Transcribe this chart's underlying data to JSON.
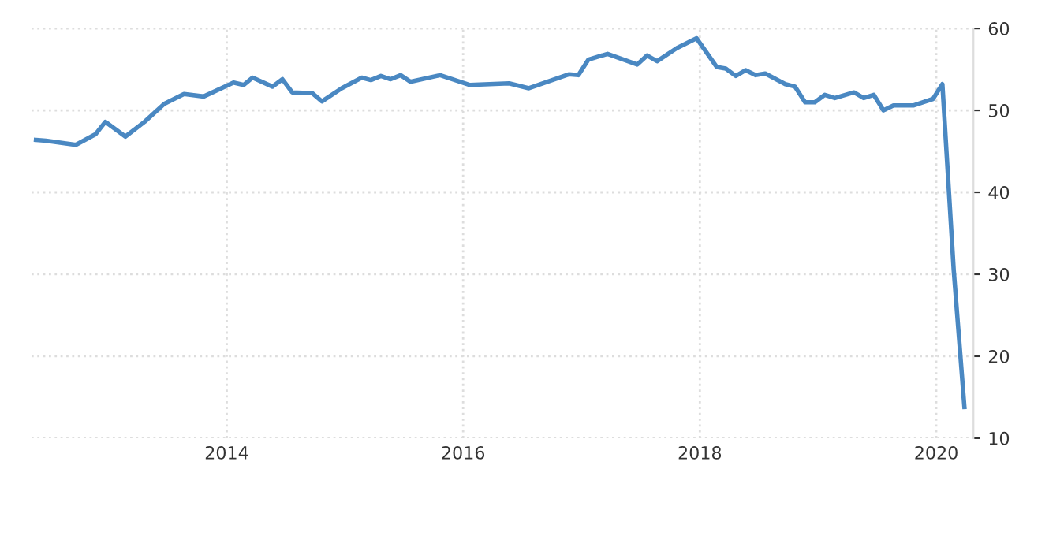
{
  "chart_data": {
    "type": "line",
    "x": [
      "2012-05-22",
      "2012-06-22",
      "2012-09-22",
      "2012-11-22",
      "2012-12-22",
      "2013-02-22",
      "2013-04-22",
      "2013-06-22",
      "2013-08-22",
      "2013-10-22",
      "2014-01-22",
      "2014-02-22",
      "2014-03-22",
      "2014-05-22",
      "2014-06-22",
      "2014-07-22",
      "2014-09-22",
      "2014-10-22",
      "2014-12-22",
      "2015-02-22",
      "2015-03-22",
      "2015-04-22",
      "2015-05-22",
      "2015-06-22",
      "2015-07-22",
      "2015-10-22",
      "2016-01-22",
      "2016-05-22",
      "2016-07-22",
      "2016-11-22",
      "2016-12-22",
      "2017-01-22",
      "2017-03-22",
      "2017-06-22",
      "2017-07-22",
      "2017-08-22",
      "2017-10-22",
      "2017-12-22",
      "2018-02-22",
      "2018-03-22",
      "2018-04-22",
      "2018-05-22",
      "2018-06-22",
      "2018-07-22",
      "2018-09-22",
      "2018-10-22",
      "2018-11-22",
      "2018-12-22",
      "2019-01-22",
      "2019-02-22",
      "2019-04-22",
      "2019-05-22",
      "2019-06-22",
      "2019-07-22",
      "2019-08-22",
      "2019-10-22",
      "2019-12-22",
      "2020-01-20",
      "2020-02-24",
      "2020-03-28"
    ],
    "series": [
      {
        "color": "#4a88c2",
        "values": [
          46.4,
          46.3,
          45.8,
          47.1,
          48.6,
          46.8,
          48.6,
          50.8,
          52.0,
          51.7,
          53.4,
          53.1,
          54.0,
          52.9,
          53.8,
          52.2,
          52.1,
          51.1,
          52.7,
          54.0,
          53.7,
          54.2,
          53.8,
          54.3,
          53.5,
          54.3,
          53.1,
          53.3,
          52.7,
          54.4,
          54.3,
          56.2,
          56.9,
          55.6,
          56.7,
          56.0,
          57.6,
          58.8,
          55.3,
          55.1,
          54.2,
          54.9,
          54.3,
          54.5,
          53.2,
          52.9,
          51.0,
          51.0,
          51.9,
          51.5,
          52.2,
          51.5,
          51.9,
          50.0,
          50.6,
          50.6,
          51.4,
          53.2,
          30.5,
          13.8
        ]
      }
    ],
    "xlim": [
      "2012-05-08",
      "2020-04-25"
    ],
    "xticks": [
      {
        "value": "2014-01-01",
        "label": "2014"
      },
      {
        "value": "2016-01-01",
        "label": "2016"
      },
      {
        "value": "2018-01-01",
        "label": "2018"
      },
      {
        "value": "2020-01-01",
        "label": "2020"
      }
    ],
    "ylim": [
      10,
      60
    ],
    "yticks": [
      10,
      20,
      30,
      40,
      50,
      60
    ],
    "grid": true,
    "marker": "none",
    "line_style": "solid"
  }
}
